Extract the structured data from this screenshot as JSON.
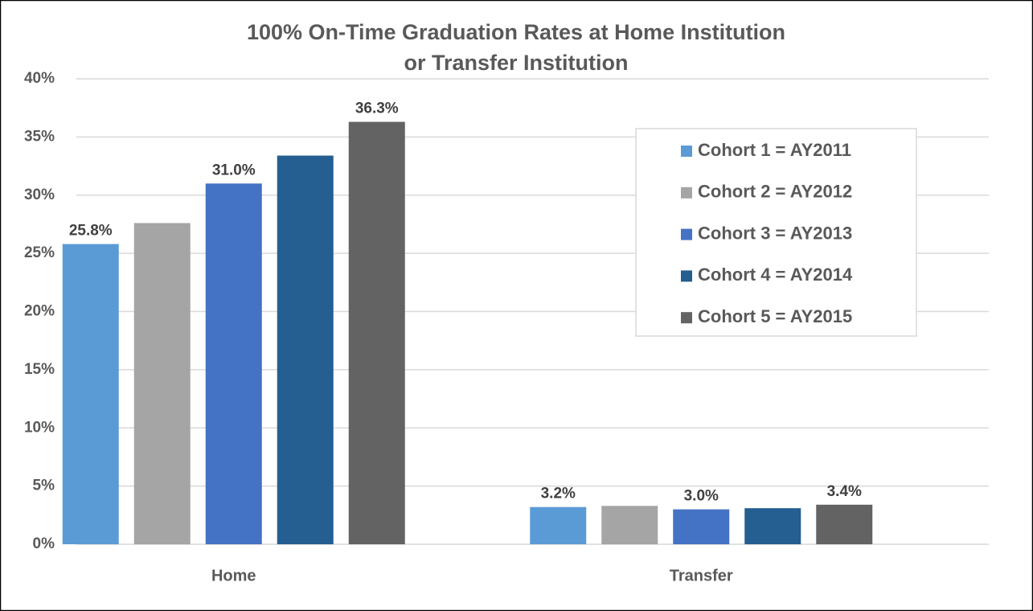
{
  "chart_data": {
    "type": "bar",
    "title": [
      "100% On-Time Graduation Rates at Home Institution",
      "or Transfer Institution"
    ],
    "categories": [
      "Home",
      "Transfer"
    ],
    "series": [
      {
        "name": "Cohort 1 = AY2011",
        "color": "#5b9bd5",
        "values": [
          25.8,
          3.2
        ],
        "value_labels": [
          "25.8%",
          "3.2%"
        ]
      },
      {
        "name": "Cohort 2 = AY2012",
        "color": "#a5a5a5",
        "values": [
          27.6,
          3.3
        ],
        "value_labels": [
          null,
          null
        ]
      },
      {
        "name": "Cohort 3 = AY2013",
        "color": "#4472c4",
        "values": [
          31.0,
          3.0
        ],
        "value_labels": [
          "31.0%",
          "3.0%"
        ]
      },
      {
        "name": "Cohort 4 = AY2014",
        "color": "#255e91",
        "values": [
          33.4,
          3.1
        ],
        "value_labels": [
          null,
          null
        ]
      },
      {
        "name": "Cohort 5 = AY2015",
        "color": "#636363",
        "values": [
          36.3,
          3.4
        ],
        "value_labels": [
          "36.3%",
          "3.4%"
        ]
      }
    ],
    "ylim": [
      0,
      40
    ],
    "yticks": [
      {
        "value": 0,
        "label": "0%"
      },
      {
        "value": 5,
        "label": "5%"
      },
      {
        "value": 10,
        "label": "10%"
      },
      {
        "value": 15,
        "label": "15%"
      },
      {
        "value": 20,
        "label": "20%"
      },
      {
        "value": 25,
        "label": "25%"
      },
      {
        "value": 30,
        "label": "30%"
      },
      {
        "value": 35,
        "label": "35%"
      },
      {
        "value": 40,
        "label": "40%"
      }
    ],
    "grid": true,
    "legend": "upper right"
  }
}
